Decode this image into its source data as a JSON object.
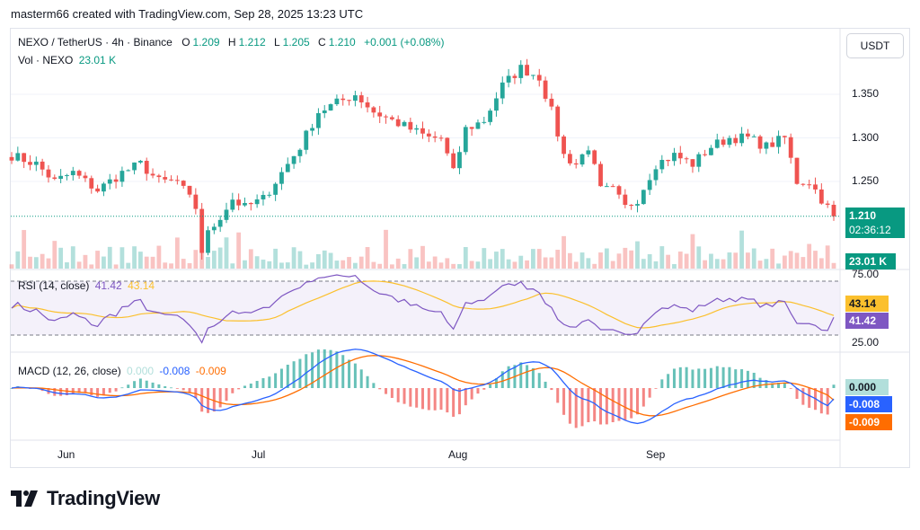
{
  "credit": "masterm66 created with TradingView.com, Sep 28, 2025 13:23 UTC",
  "header": {
    "pair": "NEXO / TetherUS · 4h · Binance",
    "o_label": "O",
    "o_value": "1.209",
    "h_label": "H",
    "h_value": "1.212",
    "l_label": "L",
    "l_value": "1.205",
    "c_label": "C",
    "c_value": "1.210",
    "change": "+0.001 (+0.08%)",
    "vol_label": "Vol · NEXO",
    "vol_value": "23.01 K"
  },
  "unit_button": "USDT",
  "price_axis": {
    "ticks": [
      "1.350",
      "1.300",
      "1.250"
    ],
    "last_price": "1.210",
    "countdown": "02:36:12",
    "volume_tag": "23.01 K"
  },
  "rsi": {
    "label": "RSI (14, close)",
    "value": "41.42",
    "ma_value": "43.14",
    "upper": "75.00",
    "lower": "25.00"
  },
  "macd": {
    "label": "MACD (12, 26, close)",
    "hist": "0.000",
    "macd": "-0.008",
    "signal": "-0.009"
  },
  "time_axis": [
    "Jun",
    "Jul",
    "Aug",
    "Sep"
  ],
  "brand": "TradingView",
  "colors": {
    "up": "#26a69a",
    "down": "#ef5350",
    "rsi": "#7e57c2",
    "rsi_ma": "#fbc02d",
    "macd": "#2962ff",
    "signal": "#ff6d00",
    "accent": "#089981"
  },
  "chart_data": {
    "type": "candlestick",
    "title": "NEXO / TetherUS · 4h · Binance",
    "y_ticks": [
      1.25,
      1.3,
      1.35
    ],
    "price_anchors": [
      [
        0,
        1.28
      ],
      [
        4,
        1.27
      ],
      [
        7,
        1.25
      ],
      [
        10,
        1.26
      ],
      [
        14,
        1.24
      ],
      [
        18,
        1.26
      ],
      [
        21,
        1.27
      ],
      [
        24,
        1.25
      ],
      [
        27,
        1.25
      ],
      [
        30,
        1.22
      ],
      [
        31,
        1.17
      ],
      [
        32,
        1.19
      ],
      [
        34,
        1.21
      ],
      [
        36,
        1.23
      ],
      [
        38,
        1.22
      ],
      [
        41,
        1.23
      ],
      [
        44,
        1.26
      ],
      [
        47,
        1.29
      ],
      [
        50,
        1.33
      ],
      [
        53,
        1.34
      ],
      [
        56,
        1.35
      ],
      [
        59,
        1.33
      ],
      [
        62,
        1.32
      ],
      [
        65,
        1.31
      ],
      [
        68,
        1.3
      ],
      [
        70,
        1.3
      ],
      [
        72,
        1.26
      ],
      [
        74,
        1.31
      ],
      [
        77,
        1.32
      ],
      [
        80,
        1.36
      ],
      [
        83,
        1.38
      ],
      [
        86,
        1.37
      ],
      [
        88,
        1.33
      ],
      [
        90,
        1.28
      ],
      [
        92,
        1.27
      ],
      [
        94,
        1.29
      ],
      [
        96,
        1.24
      ],
      [
        98,
        1.24
      ],
      [
        100,
        1.22
      ],
      [
        102,
        1.23
      ],
      [
        105,
        1.27
      ],
      [
        108,
        1.28
      ],
      [
        111,
        1.27
      ],
      [
        114,
        1.29
      ],
      [
        117,
        1.3
      ],
      [
        120,
        1.3
      ],
      [
        123,
        1.29
      ],
      [
        126,
        1.3
      ],
      [
        128,
        1.25
      ],
      [
        130,
        1.25
      ],
      [
        132,
        1.23
      ],
      [
        134,
        1.21
      ]
    ],
    "current_price": 1.21,
    "rsi": {
      "name": "RSI (14, close)",
      "last": 41.42,
      "ma_last": 43.14,
      "bands": [
        25,
        75
      ]
    },
    "macd": {
      "name": "MACD (12, 26, close)",
      "macd_last": -0.008,
      "signal_last": -0.009,
      "hist_last": 0.0
    },
    "x_labels": [
      "Jun",
      "Jul",
      "Aug",
      "Sep"
    ]
  }
}
